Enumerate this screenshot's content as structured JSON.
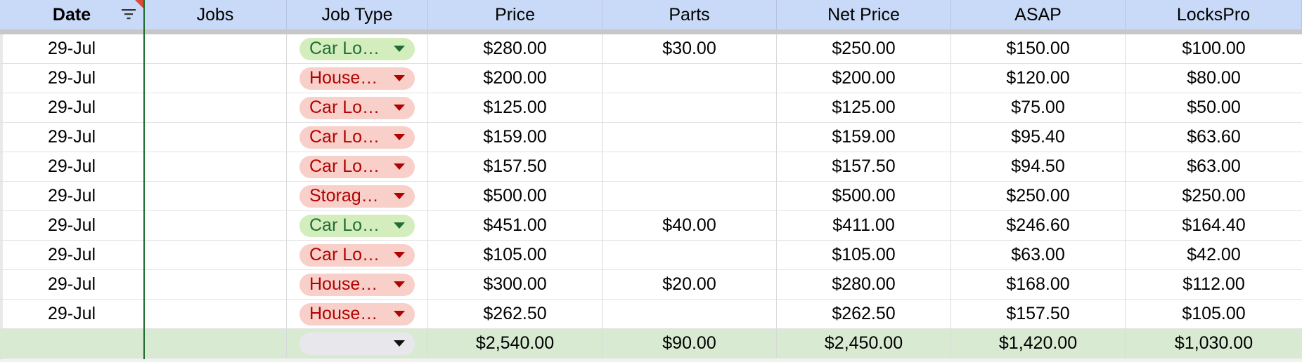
{
  "colors": {
    "header_bg": "#c9daf8",
    "total_bg": "#d9ead3",
    "chip_green_bg": "#d4edbc",
    "chip_green_text": "#1e6e33",
    "chip_red_bg": "#f8cfc9",
    "chip_red_text": "#b10202"
  },
  "headers": [
    "Date",
    "Jobs",
    "Job Type",
    "Price",
    "Parts",
    "Net Price",
    "ASAP",
    "LocksPro"
  ],
  "rows": [
    {
      "date": "29-Jul",
      "jobs": "",
      "job_type": "Car Lo…",
      "job_type_color": "green",
      "price": "$280.00",
      "parts": "$30.00",
      "net_price": "$250.00",
      "asap": "$150.00",
      "lockspro": "$100.00"
    },
    {
      "date": "29-Jul",
      "jobs": "",
      "job_type": "House…",
      "job_type_color": "red",
      "price": "$200.00",
      "parts": "",
      "net_price": "$200.00",
      "asap": "$120.00",
      "lockspro": "$80.00"
    },
    {
      "date": "29-Jul",
      "jobs": "",
      "job_type": "Car Lo…",
      "job_type_color": "red",
      "price": "$125.00",
      "parts": "",
      "net_price": "$125.00",
      "asap": "$75.00",
      "lockspro": "$50.00"
    },
    {
      "date": "29-Jul",
      "jobs": "",
      "job_type": "Car Lo…",
      "job_type_color": "red",
      "price": "$159.00",
      "parts": "",
      "net_price": "$159.00",
      "asap": "$95.40",
      "lockspro": "$63.60"
    },
    {
      "date": "29-Jul",
      "jobs": "",
      "job_type": "Car Lo…",
      "job_type_color": "red",
      "price": "$157.50",
      "parts": "",
      "net_price": "$157.50",
      "asap": "$94.50",
      "lockspro": "$63.00"
    },
    {
      "date": "29-Jul",
      "jobs": "",
      "job_type": "Storag…",
      "job_type_color": "red",
      "price": "$500.00",
      "parts": "",
      "net_price": "$500.00",
      "asap": "$250.00",
      "lockspro": "$250.00"
    },
    {
      "date": "29-Jul",
      "jobs": "",
      "job_type": "Car Lo…",
      "job_type_color": "green",
      "price": "$451.00",
      "parts": "$40.00",
      "net_price": "$411.00",
      "asap": "$246.60",
      "lockspro": "$164.40"
    },
    {
      "date": "29-Jul",
      "jobs": "",
      "job_type": "Car Lo…",
      "job_type_color": "red",
      "price": "$105.00",
      "parts": "",
      "net_price": "$105.00",
      "asap": "$63.00",
      "lockspro": "$42.00"
    },
    {
      "date": "29-Jul",
      "jobs": "",
      "job_type": "House…",
      "job_type_color": "red",
      "price": "$300.00",
      "parts": "$20.00",
      "net_price": "$280.00",
      "asap": "$168.00",
      "lockspro": "$112.00"
    },
    {
      "date": "29-Jul",
      "jobs": "",
      "job_type": "House…",
      "job_type_color": "red",
      "price": "$262.50",
      "parts": "",
      "net_price": "$262.50",
      "asap": "$157.50",
      "lockspro": "$105.00"
    }
  ],
  "totals": {
    "date": "",
    "jobs": "",
    "job_type": "",
    "price": "$2,540.00",
    "parts": "$90.00",
    "net_price": "$2,450.00",
    "asap": "$1,420.00",
    "lockspro": "$1,030.00"
  },
  "icons": {
    "filter": "filter-icon",
    "dropdown": "dropdown-arrow-icon"
  }
}
